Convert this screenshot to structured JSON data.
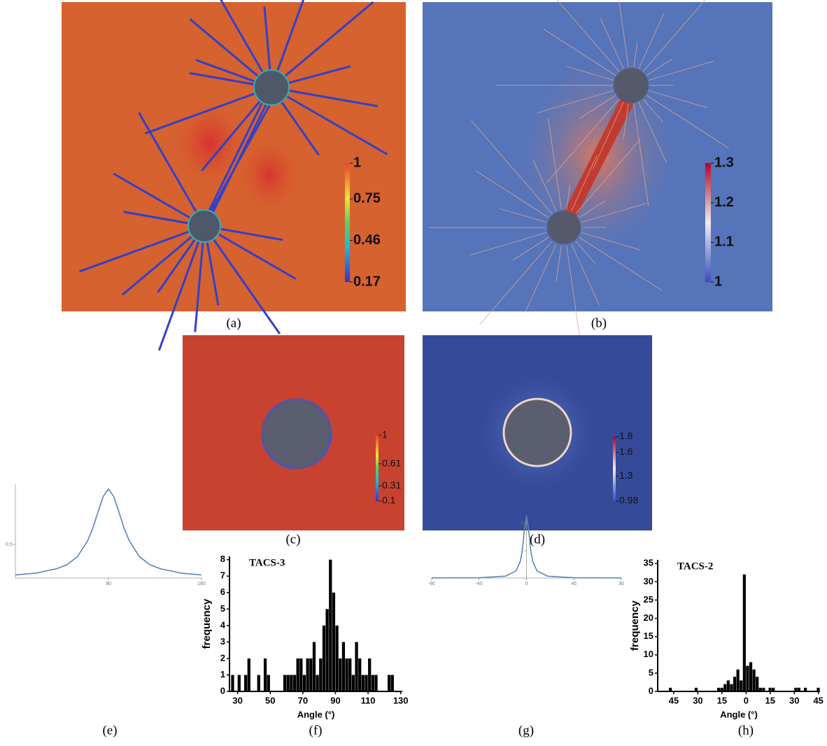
{
  "images": [
    {
      "caption": "(a)",
      "colorbar": {
        "lim": [
          0.17,
          1
        ],
        "ticks": [
          0.17,
          0.46,
          0.75,
          1
        ]
      }
    },
    {
      "caption": "(b)",
      "colorbar": {
        "lim": [
          1,
          1.3
        ],
        "ticks": [
          1,
          1.1,
          1.2,
          1.3
        ]
      }
    },
    {
      "caption": "(c)",
      "colorbar": {
        "lim": [
          0.1,
          1
        ],
        "ticks": [
          0.1,
          0.31,
          0.61,
          1
        ]
      }
    },
    {
      "caption": "(d)",
      "colorbar": {
        "lim": [
          0.98,
          1.8
        ],
        "ticks": [
          0.98,
          1.3,
          1.6,
          1.8
        ]
      }
    }
  ],
  "chart_data": [
    {
      "type": "line",
      "caption": "(e)",
      "color": "#5b86b5",
      "x": [
        0,
        20,
        40,
        50,
        60,
        70,
        75,
        80,
        85,
        90,
        95,
        100,
        105,
        110,
        120,
        130,
        140,
        160,
        180
      ],
      "values": [
        0.046,
        0.074,
        0.14,
        0.2,
        0.32,
        0.56,
        0.75,
        0.99,
        1.22,
        1.33,
        1.22,
        0.99,
        0.75,
        0.56,
        0.32,
        0.2,
        0.14,
        0.074,
        0.046
      ],
      "xlim": [
        0,
        180
      ],
      "ylim": [
        0,
        1.4
      ],
      "xticks": [
        90,
        180
      ],
      "yticks": [
        0.5
      ]
    },
    {
      "type": "histogram",
      "caption": "(f)",
      "title": "TACS-3",
      "xlabel": "Angle (°)",
      "ylabel": "frequency",
      "color": "#000000",
      "bins": [
        26,
        28,
        30,
        32,
        34,
        36,
        38,
        40,
        42,
        44,
        46,
        48,
        50,
        52,
        54,
        56,
        58,
        60,
        62,
        64,
        66,
        68,
        70,
        72,
        74,
        76,
        78,
        80,
        82,
        84,
        86,
        88,
        90,
        92,
        94,
        96,
        98,
        100,
        102,
        104,
        106,
        108,
        110,
        112,
        114,
        116,
        118,
        120,
        122,
        124,
        126,
        128
      ],
      "values": [
        1,
        0,
        1,
        0,
        1,
        2,
        0,
        0,
        1,
        0,
        2,
        1,
        0,
        0,
        0,
        0,
        1,
        1,
        1,
        1,
        2,
        2,
        1,
        2,
        2,
        3,
        1,
        2,
        4,
        5,
        8,
        6,
        4,
        2,
        3,
        2,
        2,
        1,
        3,
        2,
        1,
        1,
        2,
        1,
        1,
        0,
        0,
        0,
        1,
        1,
        0
      ],
      "xlim": [
        25,
        131
      ],
      "ylim": [
        0,
        8.2
      ],
      "xticks": [
        30,
        50,
        70,
        90,
        110,
        130
      ],
      "yticks": [
        0,
        1,
        2,
        3,
        4,
        5,
        6,
        7,
        8
      ]
    },
    {
      "type": "line",
      "caption": "(g)",
      "color": "#5b86b5",
      "x": [
        -90,
        -45,
        -20,
        -10,
        -6,
        -4,
        -2,
        0,
        2,
        4,
        6,
        10,
        20,
        45,
        90
      ],
      "values": [
        0.004,
        0.014,
        0.07,
        0.26,
        0.6,
        1.02,
        1.77,
        2.25,
        1.77,
        1.02,
        0.6,
        0.26,
        0.07,
        0.014,
        0.004
      ],
      "xlim": [
        -90,
        90
      ],
      "ylim": [
        0,
        2.3
      ],
      "xticks": [
        -90,
        -45,
        0,
        45,
        90
      ],
      "yticks": [
        1,
        2
      ]
    },
    {
      "type": "histogram",
      "caption": "(h)",
      "title": "TACS-2",
      "xlabel": "Angle (°)",
      "ylabel": "frequency",
      "color": "#000000",
      "bins": [
        -48,
        -46,
        -44,
        -42,
        -40,
        -38,
        -36,
        -34,
        -32,
        -30,
        -28,
        -26,
        -24,
        -22,
        -20,
        -18,
        -16,
        -14,
        -12,
        -10,
        -8,
        -6,
        -4,
        -2,
        0,
        2,
        4,
        6,
        8,
        10,
        12,
        14,
        16,
        18,
        20,
        22,
        24,
        26,
        28,
        30,
        32,
        34,
        36,
        38,
        40,
        42,
        44,
        46
      ],
      "values": [
        1,
        0,
        0,
        0,
        0,
        0,
        0,
        0,
        1,
        0,
        0,
        0,
        0,
        0,
        0,
        1,
        1,
        2,
        3,
        2,
        4,
        6,
        3,
        32,
        7,
        8,
        6,
        4,
        1,
        1,
        0,
        1,
        1,
        0,
        0,
        0,
        0,
        0,
        0,
        1,
        1,
        0,
        1,
        0,
        0,
        0,
        1
      ],
      "xlim": [
        -55,
        46
      ],
      "ylim": [
        0,
        36
      ],
      "xticks": [
        {
          "value": -45,
          "label": "45"
        },
        {
          "value": -30,
          "label": "30"
        },
        {
          "value": -15,
          "label": "15"
        },
        0,
        {
          "value": 15,
          "label": "15"
        },
        {
          "value": 30,
          "label": "30"
        },
        {
          "value": 45,
          "label": "45"
        }
      ],
      "yticks": [
        0,
        5,
        10,
        15,
        20,
        25,
        30,
        35
      ]
    }
  ]
}
